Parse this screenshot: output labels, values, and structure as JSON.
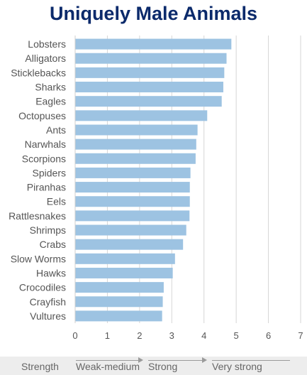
{
  "chart_data": {
    "type": "bar",
    "orientation": "horizontal",
    "title": "Uniquely Male Animals",
    "categories": [
      "Lobsters",
      "Alligators",
      "Sticklebacks",
      "Sharks",
      "Eagles",
      "Octopuses",
      "Ants",
      "Narwhals",
      "Scorpions",
      "Spiders",
      "Piranhas",
      "Eels",
      "Rattlesnakes",
      "Shrimps",
      "Crabs",
      "Slow Worms",
      "Hawks",
      "Crocodiles",
      "Crayfish",
      "Vultures"
    ],
    "values": [
      4.85,
      4.7,
      4.63,
      4.6,
      4.55,
      4.1,
      3.8,
      3.76,
      3.74,
      3.58,
      3.56,
      3.56,
      3.55,
      3.45,
      3.35,
      3.1,
      3.03,
      2.75,
      2.72,
      2.7
    ],
    "xlim": [
      0,
      7
    ],
    "xticks": [
      "0",
      "1",
      "2",
      "3",
      "4",
      "5",
      "6",
      "7"
    ],
    "grid": "vertical",
    "bar_color": "#9dc3e2"
  },
  "legend": {
    "label": "Strength",
    "levels": [
      "Weak-medium",
      "Strong",
      "Very strong"
    ]
  },
  "colors": {
    "title": "#0b2a6b",
    "footer_bg": "#ededed"
  }
}
